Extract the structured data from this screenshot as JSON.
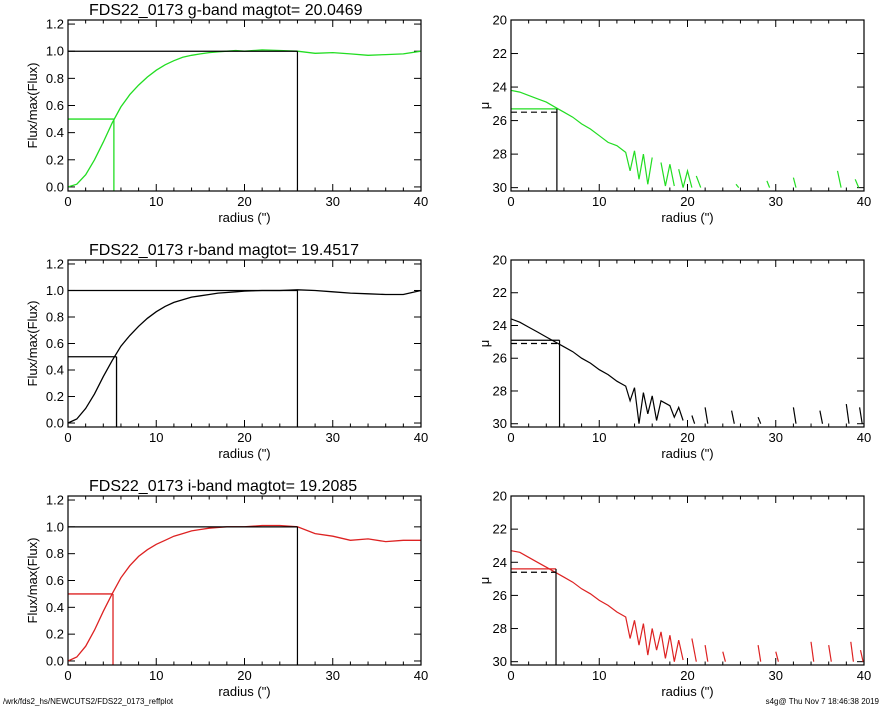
{
  "chart_data": [
    {
      "type": "line",
      "title": "FDS22_0173 g-band  magtot=     20.0469",
      "xlabel": "radius (\")",
      "ylabel": "Flux/max(Flux)",
      "xlim": [
        0,
        40
      ],
      "ylim": [
        -0.03,
        1.23
      ],
      "xticks": [
        0,
        10,
        20,
        30,
        40
      ],
      "yticks": [
        "0.0",
        "0.2",
        "0.4",
        "0.6",
        "0.8",
        "1.0",
        "1.2"
      ],
      "color": "#22dd22",
      "curve": {
        "x": [
          0,
          1,
          2,
          3,
          4,
          5,
          6,
          7,
          8,
          9,
          10,
          11,
          12,
          13,
          14,
          15,
          16,
          17,
          18,
          19,
          20,
          22,
          24,
          26,
          28,
          30,
          32,
          34,
          36,
          38,
          40
        ],
        "y": [
          0,
          0.02,
          0.09,
          0.2,
          0.33,
          0.47,
          0.59,
          0.68,
          0.75,
          0.81,
          0.86,
          0.9,
          0.93,
          0.955,
          0.97,
          0.98,
          0.99,
          0.995,
          1.0,
          1.005,
          1.0,
          1.01,
          1.005,
          1.0,
          0.985,
          0.99,
          0.98,
          0.97,
          0.975,
          0.98,
          1.0
        ]
      },
      "half_light": {
        "x": 5.2,
        "y": 0.5
      },
      "total_radius": 26,
      "total_level": 1.0
    },
    {
      "type": "line",
      "xlabel": "radius (\")",
      "ylabel": "μ",
      "xlim": [
        0,
        40
      ],
      "ylim": [
        30.2,
        20
      ],
      "xticks": [
        0,
        10,
        20,
        30,
        40
      ],
      "yticks": [
        "20",
        "22",
        "24",
        "26",
        "28",
        "30"
      ],
      "color": "#22dd22",
      "segments": [
        [
          [
            0,
            24.2
          ],
          [
            1,
            24.3
          ],
          [
            2,
            24.5
          ],
          [
            3,
            24.7
          ],
          [
            4,
            24.9
          ],
          [
            5,
            25.2
          ],
          [
            6,
            25.5
          ],
          [
            7,
            25.8
          ],
          [
            8,
            26.2
          ],
          [
            9,
            26.5
          ],
          [
            10,
            26.9
          ],
          [
            11,
            27.3
          ],
          [
            12,
            27.5
          ],
          [
            13,
            27.9
          ],
          [
            13.5,
            29.0
          ],
          [
            14,
            27.8
          ],
          [
            14.5,
            29.5
          ],
          [
            15,
            28.0
          ],
          [
            15.5,
            29.8
          ],
          [
            16,
            28.2
          ]
        ],
        [
          [
            17,
            28.5
          ],
          [
            17.5,
            29.9
          ],
          [
            18,
            28.6
          ],
          [
            18.5,
            29.9
          ]
        ],
        [
          [
            19,
            28.9
          ],
          [
            19.5,
            30.0
          ],
          [
            20,
            29.0
          ],
          [
            20.5,
            30.0
          ]
        ],
        [
          [
            21,
            29.3
          ],
          [
            21.5,
            30.0
          ]
        ],
        [
          [
            25.5,
            29.8
          ],
          [
            25.8,
            30.0
          ]
        ],
        [
          [
            29,
            29.6
          ],
          [
            29.3,
            30.0
          ]
        ],
        [
          [
            32,
            29.4
          ],
          [
            32.3,
            30.0
          ]
        ],
        [
          [
            37,
            29.0
          ],
          [
            37.4,
            30.0
          ]
        ],
        [
          [
            39,
            29.5
          ],
          [
            39.4,
            30.0
          ]
        ]
      ],
      "reff": 5.2,
      "mu_eff": 25.3,
      "mu_eff_dashed": 25.5
    },
    {
      "type": "line",
      "title": "FDS22_0173 r-band  magtot=     19.4517",
      "xlabel": "radius (\")",
      "ylabel": "Flux/max(Flux)",
      "xlim": [
        0,
        40
      ],
      "ylim": [
        -0.03,
        1.23
      ],
      "xticks": [
        0,
        10,
        20,
        30,
        40
      ],
      "yticks": [
        "0.0",
        "0.2",
        "0.4",
        "0.6",
        "0.8",
        "1.0",
        "1.2"
      ],
      "color": "#000000",
      "curve": {
        "x": [
          0,
          1,
          2,
          3,
          4,
          5,
          6,
          7,
          8,
          9,
          10,
          11,
          12,
          13,
          14,
          15,
          16,
          17,
          18,
          19,
          20,
          22,
          24,
          26,
          28,
          30,
          32,
          34,
          36,
          38,
          40
        ],
        "y": [
          0,
          0.03,
          0.11,
          0.22,
          0.35,
          0.47,
          0.58,
          0.66,
          0.73,
          0.79,
          0.84,
          0.88,
          0.91,
          0.93,
          0.95,
          0.96,
          0.97,
          0.98,
          0.985,
          0.99,
          0.995,
          1.0,
          1.0,
          1.005,
          1.0,
          0.99,
          0.98,
          0.975,
          0.97,
          0.97,
          1.0
        ]
      },
      "half_light": {
        "x": 5.5,
        "y": 0.5
      },
      "total_radius": 26,
      "total_level": 1.0
    },
    {
      "type": "line",
      "xlabel": "radius (\")",
      "ylabel": "μ",
      "xlim": [
        0,
        40
      ],
      "ylim": [
        30.2,
        20
      ],
      "xticks": [
        0,
        10,
        20,
        30,
        40
      ],
      "yticks": [
        "20",
        "22",
        "24",
        "26",
        "28",
        "30"
      ],
      "color": "#000000",
      "segments": [
        [
          [
            0,
            23.6
          ],
          [
            1,
            23.8
          ],
          [
            2,
            24.1
          ],
          [
            3,
            24.4
          ],
          [
            4,
            24.7
          ],
          [
            5,
            25.0
          ],
          [
            6,
            25.3
          ],
          [
            7,
            25.6
          ],
          [
            8,
            26.0
          ],
          [
            9,
            26.3
          ],
          [
            10,
            26.7
          ],
          [
            11,
            27.0
          ],
          [
            12,
            27.4
          ],
          [
            13,
            27.7
          ],
          [
            13.5,
            28.6
          ],
          [
            14,
            27.8
          ],
          [
            14.5,
            30.0
          ],
          [
            15,
            28.1
          ],
          [
            15.5,
            29.4
          ],
          [
            16,
            28.3
          ],
          [
            16.5,
            29.8
          ],
          [
            17,
            28.6
          ],
          [
            18,
            28.9
          ],
          [
            18.5,
            29.6
          ],
          [
            19,
            29.0
          ],
          [
            19.5,
            29.8
          ]
        ],
        [
          [
            20.5,
            29.5
          ],
          [
            20.8,
            30.0
          ]
        ],
        [
          [
            22,
            29.0
          ],
          [
            22.3,
            30.0
          ]
        ],
        [
          [
            25,
            29.2
          ],
          [
            25.3,
            30.0
          ]
        ],
        [
          [
            28,
            29.6
          ],
          [
            28.3,
            30.0
          ]
        ],
        [
          [
            32,
            29.0
          ],
          [
            32.3,
            30.0
          ]
        ],
        [
          [
            35,
            29.2
          ],
          [
            35.3,
            30.0
          ]
        ],
        [
          [
            38,
            28.8
          ],
          [
            38.3,
            30.0
          ]
        ],
        [
          [
            39.5,
            29.0
          ],
          [
            39.8,
            30.0
          ]
        ]
      ],
      "reff": 5.5,
      "mu_eff": 24.9,
      "mu_eff_dashed": 25.1
    },
    {
      "type": "line",
      "title": "FDS22_0173 i-band  magtot=     19.2085",
      "xlabel": "radius (\")",
      "ylabel": "Flux/max(Flux)",
      "xlim": [
        0,
        40
      ],
      "ylim": [
        -0.03,
        1.23
      ],
      "xticks": [
        0,
        10,
        20,
        30,
        40
      ],
      "yticks": [
        "0.0",
        "0.2",
        "0.4",
        "0.6",
        "0.8",
        "1.0",
        "1.2"
      ],
      "color": "#dd2222",
      "curve": {
        "x": [
          0,
          1,
          2,
          3,
          4,
          5,
          6,
          7,
          8,
          9,
          10,
          11,
          12,
          13,
          14,
          15,
          16,
          17,
          18,
          19,
          20,
          22,
          24,
          26,
          28,
          30,
          32,
          34,
          36,
          38,
          40
        ],
        "y": [
          0,
          0.03,
          0.11,
          0.23,
          0.37,
          0.5,
          0.62,
          0.71,
          0.78,
          0.83,
          0.87,
          0.9,
          0.93,
          0.95,
          0.97,
          0.98,
          0.99,
          0.995,
          1.0,
          1.0,
          1.0,
          1.01,
          1.01,
          1.0,
          0.95,
          0.93,
          0.9,
          0.91,
          0.89,
          0.9,
          0.9
        ]
      },
      "half_light": {
        "x": 5.1,
        "y": 0.5
      },
      "total_radius": 26,
      "total_level": 1.0
    },
    {
      "type": "line",
      "xlabel": "radius (\")",
      "ylabel": "μ",
      "xlim": [
        0,
        40
      ],
      "ylim": [
        30.2,
        20
      ],
      "xticks": [
        0,
        10,
        20,
        30,
        40
      ],
      "yticks": [
        "20",
        "22",
        "24",
        "26",
        "28",
        "30"
      ],
      "color": "#dd2222",
      "segments": [
        [
          [
            0,
            23.3
          ],
          [
            1,
            23.4
          ],
          [
            2,
            23.7
          ],
          [
            3,
            24.0
          ],
          [
            4,
            24.3
          ],
          [
            5,
            24.6
          ],
          [
            6,
            24.9
          ],
          [
            7,
            25.2
          ],
          [
            8,
            25.6
          ],
          [
            9,
            25.9
          ],
          [
            10,
            26.3
          ],
          [
            11,
            26.6
          ],
          [
            12,
            27.0
          ],
          [
            13,
            27.3
          ],
          [
            13.5,
            28.6
          ],
          [
            14,
            27.5
          ],
          [
            14.5,
            29.0
          ],
          [
            15,
            27.7
          ],
          [
            15.5,
            29.6
          ],
          [
            16,
            28.0
          ],
          [
            16.5,
            29.3
          ],
          [
            17,
            28.2
          ],
          [
            17.5,
            29.8
          ],
          [
            18,
            28.4
          ],
          [
            18.5,
            30.0
          ],
          [
            19,
            28.7
          ],
          [
            19.5,
            29.9
          ]
        ],
        [
          [
            20.5,
            28.6
          ],
          [
            21.0,
            30.0
          ]
        ],
        [
          [
            22,
            29.0
          ],
          [
            22.3,
            30.0
          ]
        ],
        [
          [
            24,
            29.4
          ],
          [
            24.3,
            30.0
          ]
        ],
        [
          [
            28,
            29.0
          ],
          [
            28.3,
            30.0
          ]
        ],
        [
          [
            30,
            29.4
          ],
          [
            30.3,
            30.0
          ]
        ],
        [
          [
            34,
            28.8
          ],
          [
            34.3,
            30.0
          ]
        ],
        [
          [
            36,
            29.0
          ],
          [
            36.3,
            30.0
          ]
        ],
        [
          [
            38.5,
            28.8
          ],
          [
            38.8,
            30.0
          ]
        ],
        [
          [
            39.6,
            29.3
          ],
          [
            39.9,
            30.0
          ]
        ]
      ],
      "reff": 5.1,
      "mu_eff": 24.4,
      "mu_eff_dashed": 24.6
    }
  ],
  "footer": {
    "left": "/wrk/fds2_hs/NEWCUTS2/FDS22_0173_reffplot",
    "right": "s4g@  Thu Nov  7 18:46:38 2019"
  }
}
